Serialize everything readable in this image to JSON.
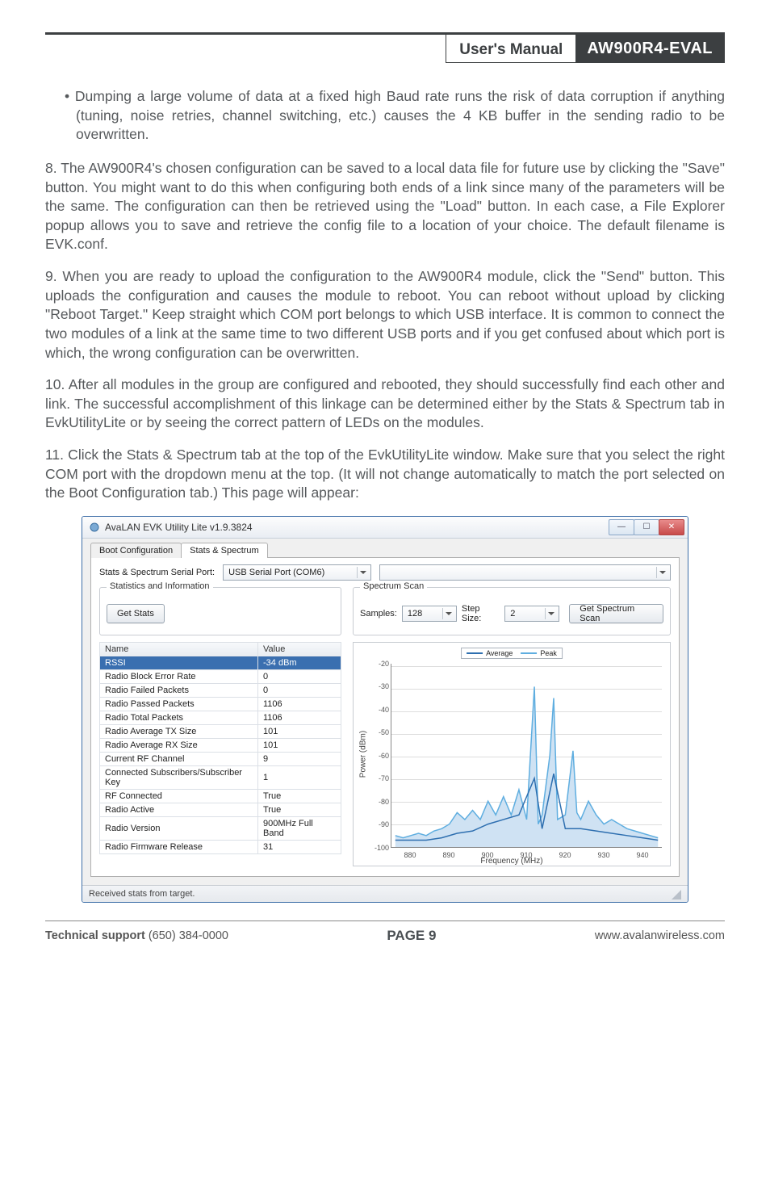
{
  "header": {
    "manual_label": "User's Manual",
    "model": "AW900R4-EVAL"
  },
  "body": {
    "bullet": "• Dumping a large volume of data at a fixed high Baud rate runs the risk of data corruption if anything (tuning, noise retries, channel switching, etc.) causes the 4 KB buffer in the sending radio to be overwritten.",
    "p8": "8. The AW900R4's chosen configuration can be saved to a local data file for future use by clicking the \"Save\" button. You might want to do this when configuring both ends of a link since many of the parameters will be the same. The configuration can then be retrieved using the \"Load\" button. In each case, a File Explorer popup allows you to save and retrieve the config file to a location of your choice. The default filename is EVK.conf.",
    "p9": "9. When you are ready to upload the configuration to the AW900R4 module, click the \"Send\" button. This uploads the configuration and causes the module to reboot. You can reboot without upload by clicking \"Reboot Target.\" Keep straight which COM port belongs to which USB interface. It is common to connect the two modules of a link at the same time to two different USB ports and if you get confused about which port is which, the wrong configuration can be overwritten.",
    "p10": "10. After all modules in the group are configured and rebooted, they should successfully find each other and link.  The successful accomplishment of this linkage can be determined either by the Stats & Spectrum tab in EvkUtilityLite or by seeing the correct pattern of LEDs on the modules.",
    "p11": "11. Click the Stats & Spectrum tab at the top of the EvkUtilityLite window. Make sure that you select the right COM port with the dropdown menu at the top. (It will not change automatically to match the port selected on the Boot Configuration tab.) This page will appear:"
  },
  "app": {
    "title": "AvaLAN EVK Utility Lite v1.9.3824",
    "tabs": {
      "boot": "Boot Configuration",
      "stats": "Stats & Spectrum"
    },
    "port_label": "Stats & Spectrum Serial Port:",
    "port_value": "USB Serial Port (COM6)",
    "stats_group": "Statistics and Information",
    "get_stats_btn": "Get Stats",
    "name_col": "Name",
    "value_col": "Value",
    "rows": [
      {
        "name": "RSSI",
        "value": "-34 dBm",
        "sel": true
      },
      {
        "name": "Radio Block Error Rate",
        "value": "0"
      },
      {
        "name": "Radio Failed Packets",
        "value": "0"
      },
      {
        "name": "Radio Passed Packets",
        "value": "1106"
      },
      {
        "name": "Radio Total Packets",
        "value": "1106"
      },
      {
        "name": "Radio Average TX Size",
        "value": "101"
      },
      {
        "name": "Radio Average RX Size",
        "value": "101"
      },
      {
        "name": "Current RF Channel",
        "value": "9"
      },
      {
        "name": "Connected Subscribers/Subscriber Key",
        "value": "1"
      },
      {
        "name": "RF Connected",
        "value": "True"
      },
      {
        "name": "Radio Active",
        "value": "True"
      },
      {
        "name": "Radio Version",
        "value": "900MHz Full Band"
      },
      {
        "name": "Radio Firmware Release",
        "value": "31"
      }
    ],
    "scan_group": "Spectrum Scan",
    "samples_label": "Samples:",
    "samples_value": "128",
    "step_label": "Step Size:",
    "step_value": "2",
    "get_scan_btn": "Get Spectrum Scan",
    "legend_avg": "Average",
    "legend_peak": "Peak",
    "ylabel": "Power (dBm)",
    "xlabel": "Frequency (MHz)",
    "status": "Received stats from target."
  },
  "chart": {
    "y_ticks": [
      -20,
      -30,
      -40,
      -50,
      -60,
      -70,
      -80,
      -90,
      -100
    ],
    "x_ticks": [
      880,
      890,
      900,
      910,
      920,
      930,
      940
    ],
    "xlim": [
      875,
      945
    ],
    "ylim": [
      -100,
      -20
    ],
    "avg_color": "#2e6fb0",
    "peak_color": "#5faee0",
    "fill_color": "#cfe2f3",
    "grid_color": "#dddddd",
    "peak_points": [
      [
        876,
        -95
      ],
      [
        878,
        -96
      ],
      [
        880,
        -95
      ],
      [
        882,
        -94
      ],
      [
        884,
        -95
      ],
      [
        886,
        -93
      ],
      [
        888,
        -92
      ],
      [
        890,
        -90
      ],
      [
        892,
        -85
      ],
      [
        894,
        -88
      ],
      [
        896,
        -84
      ],
      [
        898,
        -88
      ],
      [
        900,
        -80
      ],
      [
        902,
        -86
      ],
      [
        904,
        -78
      ],
      [
        906,
        -86
      ],
      [
        908,
        -75
      ],
      [
        910,
        -88
      ],
      [
        912,
        -30
      ],
      [
        913,
        -90
      ],
      [
        914,
        -86
      ],
      [
        916,
        -60
      ],
      [
        917,
        -35
      ],
      [
        918,
        -88
      ],
      [
        920,
        -86
      ],
      [
        922,
        -58
      ],
      [
        923,
        -85
      ],
      [
        924,
        -88
      ],
      [
        926,
        -80
      ],
      [
        928,
        -86
      ],
      [
        930,
        -90
      ],
      [
        932,
        -88
      ],
      [
        934,
        -90
      ],
      [
        936,
        -92
      ],
      [
        938,
        -93
      ],
      [
        940,
        -94
      ],
      [
        942,
        -95
      ],
      [
        944,
        -96
      ]
    ],
    "avg_points": [
      [
        876,
        -97
      ],
      [
        880,
        -97
      ],
      [
        884,
        -97
      ],
      [
        888,
        -96
      ],
      [
        892,
        -94
      ],
      [
        896,
        -93
      ],
      [
        900,
        -90
      ],
      [
        904,
        -88
      ],
      [
        908,
        -86
      ],
      [
        912,
        -70
      ],
      [
        914,
        -92
      ],
      [
        917,
        -68
      ],
      [
        920,
        -92
      ],
      [
        924,
        -92
      ],
      [
        928,
        -93
      ],
      [
        932,
        -94
      ],
      [
        936,
        -95
      ],
      [
        940,
        -96
      ],
      [
        944,
        -97
      ]
    ]
  },
  "footer": {
    "left_label": "Technical support",
    "left_phone": " (650) 384-0000",
    "center": "PAGE 9",
    "right": "www.avalanwireless.com"
  },
  "colors": {
    "dark": "#3c3f41",
    "body_text": "#56595c",
    "sel_row": "#3a6fb0"
  }
}
